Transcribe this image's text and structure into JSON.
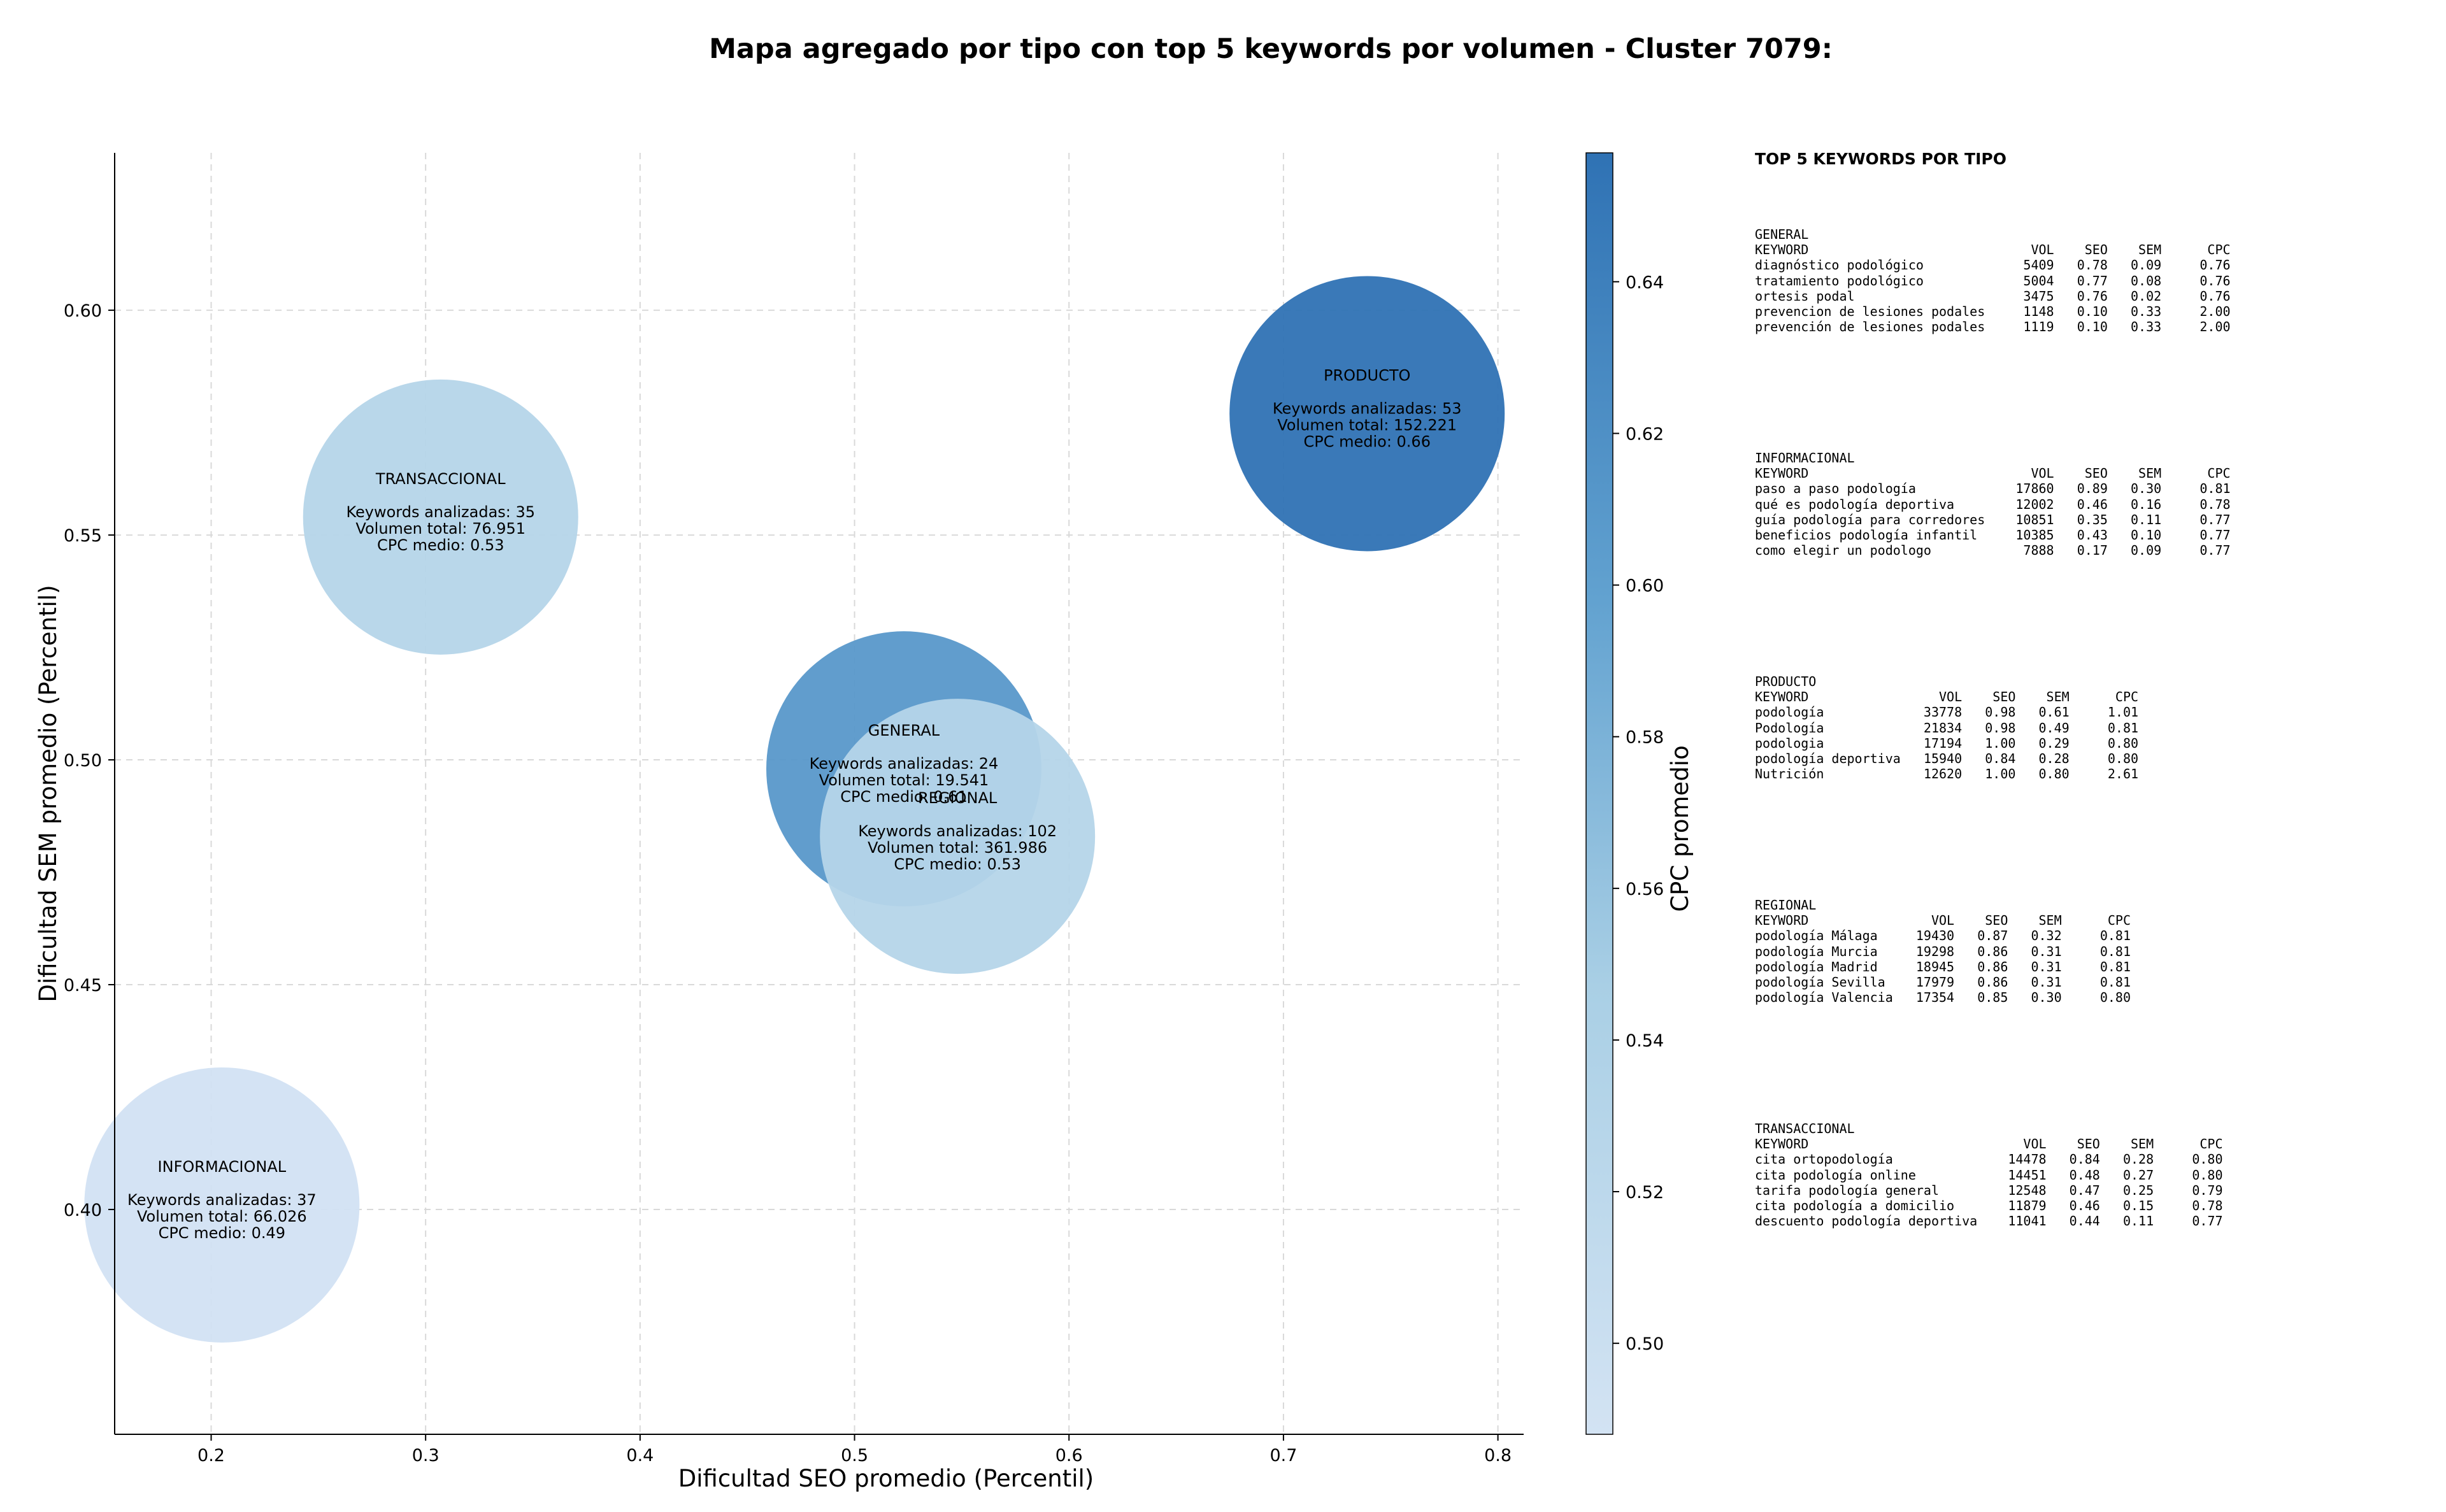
{
  "chart_data": {
    "type": "scatter",
    "title": "Mapa agregado por tipo con top 5 keywords por volumen - Cluster 7079:",
    "xlabel": "Dificultad SEO promedio (Percentil)",
    "ylabel": "Dificultad SEM promedio (Percentil)",
    "xlim": [
      0.155,
      0.812
    ],
    "ylim": [
      0.35,
      0.635
    ],
    "x_ticks": [
      0.2,
      0.3,
      0.4,
      0.5,
      0.6,
      0.7,
      0.8
    ],
    "y_ticks": [
      0.4,
      0.45,
      0.5,
      0.55,
      0.6
    ],
    "grid": true,
    "colorbar": {
      "label": "CPC promedio",
      "range": [
        0.488,
        0.657
      ],
      "ticks": [
        0.5,
        0.52,
        0.54,
        0.56,
        0.58,
        0.6,
        0.62,
        0.64
      ],
      "color_low": "#d3e3f3",
      "color_high": "#2f72b4"
    },
    "points": [
      {
        "name": "GENERAL",
        "x": 0.523,
        "y": 0.498,
        "cpc": 0.61,
        "keywords": "Keywords analizadas: 24",
        "volume": "Volumen total: 19.541",
        "cpc_text": "CPC medio: 0.61"
      },
      {
        "name": "TRANSACCIONAL",
        "x": 0.307,
        "y": 0.554,
        "cpc": 0.53,
        "keywords": "Keywords analizadas: 35",
        "volume": "Volumen total: 76.951",
        "cpc_text": "CPC medio: 0.53"
      },
      {
        "name": "INFORMACIONAL",
        "x": 0.205,
        "y": 0.401,
        "cpc": 0.49,
        "keywords": "Keywords analizadas: 37",
        "volume": "Volumen total: 66.026",
        "cpc_text": "CPC medio: 0.49"
      },
      {
        "name": "PRODUCTO",
        "x": 0.739,
        "y": 0.577,
        "cpc": 0.66,
        "keywords": "Keywords analizadas: 53",
        "volume": "Volumen total: 152.221",
        "cpc_text": "CPC medio: 0.66"
      },
      {
        "name": "REGIONAL",
        "x": 0.548,
        "y": 0.483,
        "cpc": 0.53,
        "keywords": "Keywords analizadas: 102",
        "volume": "Volumen total: 361.986",
        "cpc_text": "CPC medio: 0.53"
      }
    ]
  },
  "side_panel": {
    "title": "TOP 5 KEYWORDS POR TIPO",
    "blocks": [
      {
        "lines": [
          "GENERAL",
          "KEYWORD                             VOL    SEO    SEM      CPC",
          "diagnóstico podológico             5409   0.78   0.09     0.76",
          "tratamiento podológico             5004   0.77   0.08     0.76",
          "ortesis podal                      3475   0.76   0.02     0.76",
          "prevencion de lesiones podales     1148   0.10   0.33     2.00",
          "prevención de lesiones podales     1119   0.10   0.33     2.00"
        ]
      },
      {
        "lines": [
          "INFORMACIONAL",
          "KEYWORD                             VOL    SEO    SEM      CPC",
          "paso a paso podología             17860   0.89   0.30     0.81",
          "qué es podología deportiva        12002   0.46   0.16     0.78",
          "guía podología para corredores    10851   0.35   0.11     0.77",
          "beneficios podología infantil     10385   0.43   0.10     0.77",
          "como elegir un podologo            7888   0.17   0.09     0.77"
        ]
      },
      {
        "lines": [
          "PRODUCTO",
          "KEYWORD                 VOL    SEO    SEM      CPC",
          "podología             33778   0.98   0.61     1.01",
          "Podología             21834   0.98   0.49     0.81",
          "podologia             17194   1.00   0.29     0.80",
          "podología deportiva   15940   0.84   0.28     0.80",
          "Nutrición             12620   1.00   0.80     2.61"
        ]
      },
      {
        "lines": [
          "REGIONAL",
          "KEYWORD                VOL    SEO    SEM      CPC",
          "podología Málaga     19430   0.87   0.32     0.81",
          "podología Murcia     19298   0.86   0.31     0.81",
          "podología Madrid     18945   0.86   0.31     0.81",
          "podología Sevilla    17979   0.86   0.31     0.81",
          "podología Valencia   17354   0.85   0.30     0.80"
        ]
      },
      {
        "lines": [
          "TRANSACCIONAL",
          "KEYWORD                            VOL    SEO    SEM      CPC",
          "cita ortopodología               14478   0.84   0.28     0.80",
          "cita podología online            14451   0.48   0.27     0.80",
          "tarifa podología general         12548   0.47   0.25     0.79",
          "cita podología a domicilio       11879   0.46   0.15     0.78",
          "descuento podología deportiva    11041   0.44   0.11     0.77"
        ]
      }
    ]
  }
}
